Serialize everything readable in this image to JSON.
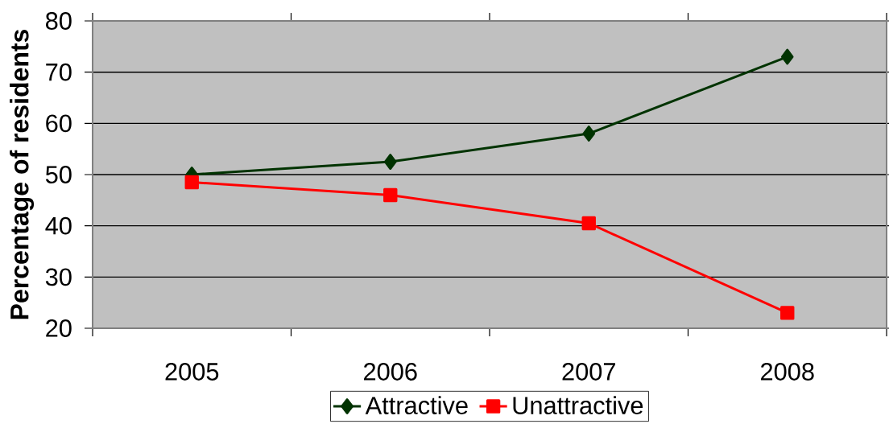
{
  "chart_data": {
    "type": "line",
    "ylabel": "Percentage of residents",
    "categories": [
      "2005",
      "2006",
      "2007",
      "2008"
    ],
    "series": [
      {
        "name": "Attractive",
        "color": "#003300",
        "marker": "diamond",
        "values": [
          50,
          52.5,
          58,
          73
        ]
      },
      {
        "name": "Unattractive",
        "color": "#ff0000",
        "marker": "square",
        "values": [
          48.5,
          46,
          40.5,
          23
        ]
      }
    ],
    "ylim": [
      20,
      80
    ],
    "yticks": [
      20,
      30,
      40,
      50,
      60,
      70,
      80
    ],
    "grid": "y",
    "legend": "bottom",
    "line_style": "solid"
  }
}
